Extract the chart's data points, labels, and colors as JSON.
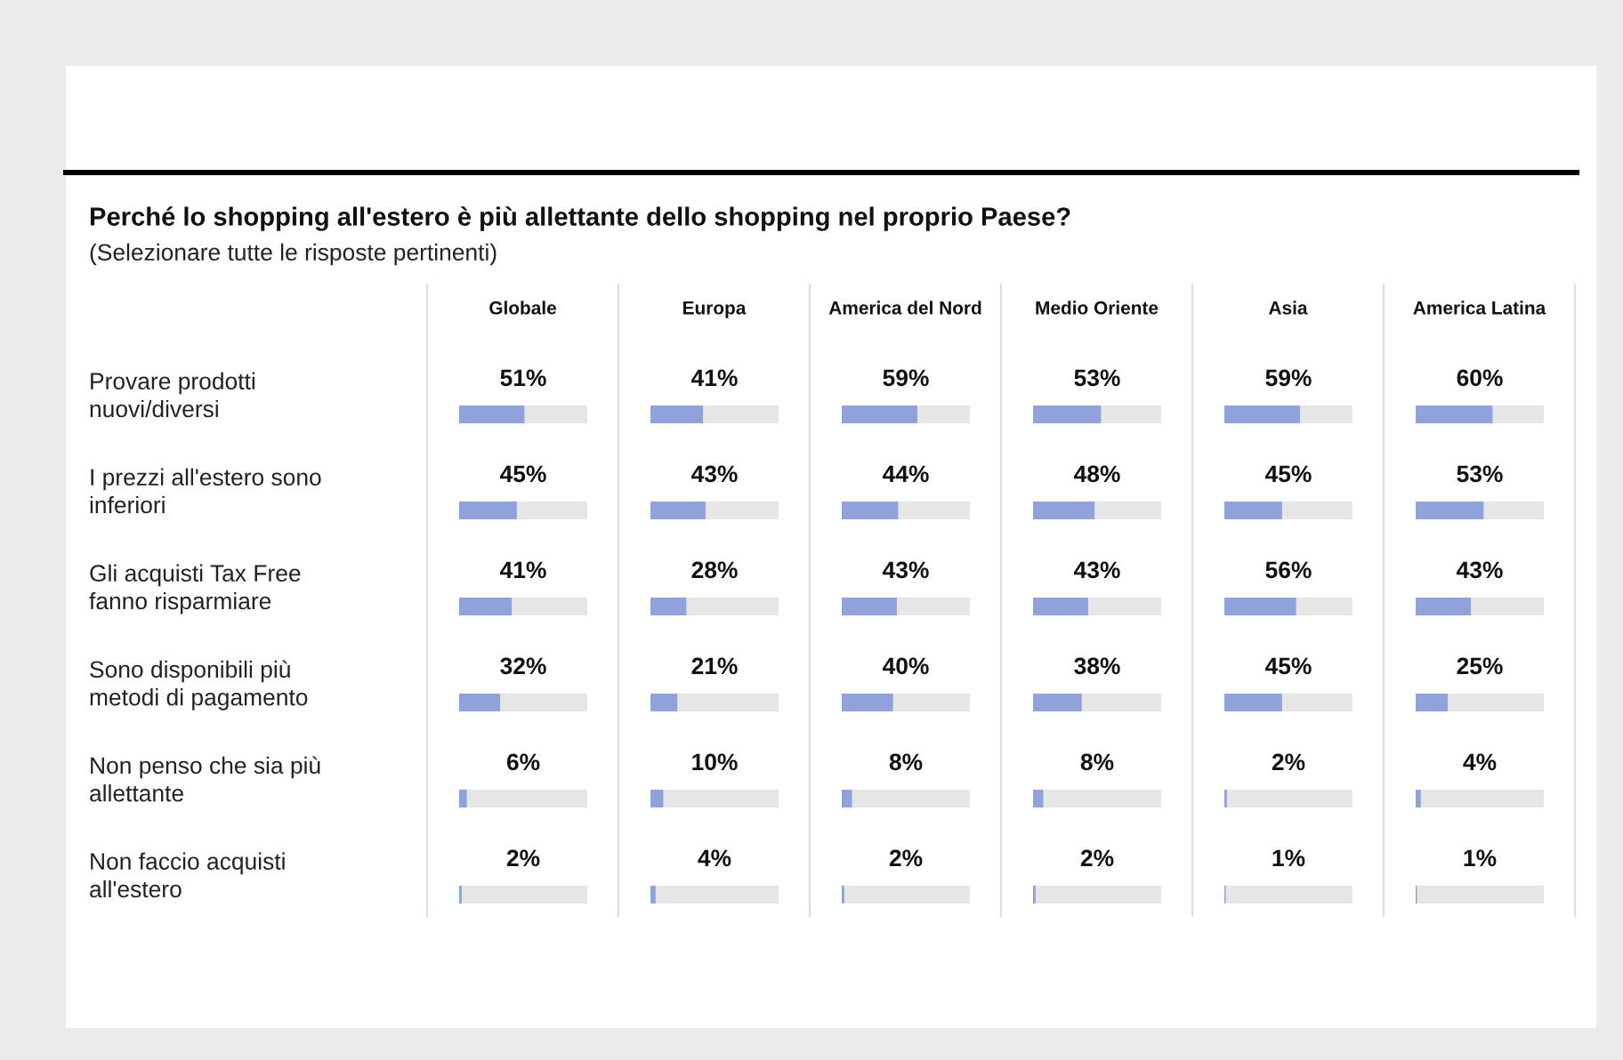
{
  "chart_data": [
    {
      "type": "bar",
      "orientation": "horizontal",
      "title": "Perché lo shopping all'estero è più allettante dello shopping nel proprio Paese?",
      "subtitle": "(Selezionare tutte le risposte pertinenti)",
      "xlabel": "Globale",
      "categories": [
        "Provare prodotti\nnuovi/diversi",
        "I prezzi all'estero sono\ninferiori",
        "Gli acquisti Tax Free\nfanno risparmiare",
        "Sono disponibili più\nmetodi di pagamento",
        "Non penso che sia più\nallettante",
        "Non faccio acquisti\nall'estero"
      ],
      "values": [
        51,
        45,
        41,
        32,
        6,
        2
      ],
      "value_labels": [
        "51%",
        "45%",
        "41%",
        "32%",
        "6%",
        "2%"
      ],
      "color": "#8fa2dc",
      "xlim": [
        0,
        100
      ],
      "tick_labels": "y"
    },
    {
      "type": "bar",
      "orientation": "horizontal",
      "xlabel": "Europa",
      "categories": [
        null,
        null,
        null,
        null,
        null,
        null
      ],
      "values": [
        41,
        43,
        28,
        21,
        10,
        4
      ],
      "value_labels": [
        "41%",
        "43%",
        "28%",
        "21%",
        "10%",
        "4%"
      ],
      "color": "#8fa2dc",
      "xlim": [
        0,
        100
      ]
    },
    {
      "type": "bar",
      "orientation": "horizontal",
      "xlabel": "America del Nord",
      "categories": [
        null,
        null,
        null,
        null,
        null,
        null
      ],
      "values": [
        59,
        44,
        43,
        40,
        8,
        2
      ],
      "value_labels": [
        "59%",
        "44%",
        "43%",
        "40%",
        "8%",
        "2%"
      ],
      "color": "#8fa2dc",
      "xlim": [
        0,
        100
      ]
    },
    {
      "type": "bar",
      "orientation": "horizontal",
      "xlabel": "Medio Oriente",
      "categories": [
        null,
        null,
        null,
        null,
        null,
        null
      ],
      "values": [
        53,
        48,
        43,
        38,
        8,
        2
      ],
      "value_labels": [
        "53%",
        "48%",
        "43%",
        "38%",
        "8%",
        "2%"
      ],
      "color": "#8fa2dc",
      "xlim": [
        0,
        100
      ]
    },
    {
      "type": "bar",
      "orientation": "horizontal",
      "xlabel": "Asia",
      "categories": [
        null,
        null,
        null,
        null,
        null,
        null
      ],
      "values": [
        59,
        45,
        56,
        45,
        2,
        1
      ],
      "value_labels": [
        "59%",
        "45%",
        "56%",
        "45%",
        "2%",
        "1%"
      ],
      "color": "#8fa2dc",
      "xlim": [
        0,
        100
      ]
    },
    {
      "type": "bar",
      "orientation": "horizontal",
      "xlabel": "America Latina",
      "categories": [
        null,
        null,
        null,
        null,
        null,
        null
      ],
      "values": [
        60,
        53,
        43,
        25,
        4,
        1
      ],
      "value_labels": [
        "60%",
        "53%",
        "43%",
        "25%",
        "4%",
        "1%"
      ],
      "color": "#8fa2dc",
      "xlim": [
        0,
        100
      ]
    }
  ]
}
